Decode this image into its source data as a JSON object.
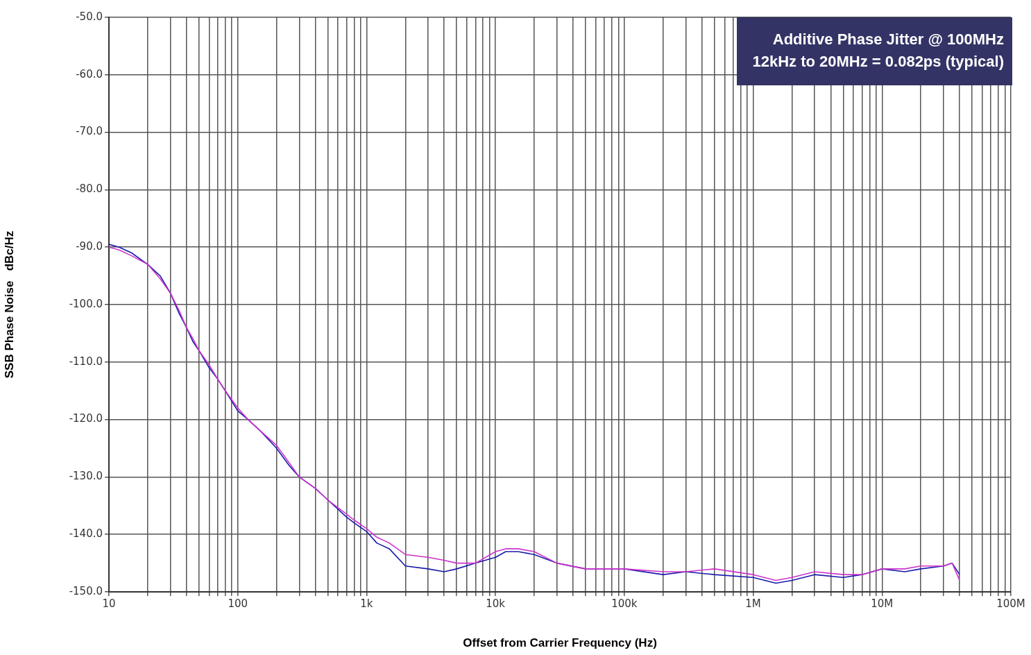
{
  "chart_data": {
    "type": "line",
    "xlabel": "Offset from Carrier Frequency (Hz)",
    "ylabel": "SSB Phase Noise   dBc/Hz",
    "log": "x",
    "grid": true,
    "marker": "none",
    "line_style": "solid",
    "annotations": [
      "Additive Phase Jitter @ 100MHz\n12kHz to 20MHz = 0.082ps (typical)"
    ],
    "x": [
      10,
      12,
      15,
      20,
      25,
      30,
      35,
      40,
      45,
      50,
      60,
      70,
      80,
      100,
      120,
      150,
      200,
      250,
      300,
      400,
      500,
      700,
      800,
      1000,
      1200,
      1500,
      2000,
      3000,
      4000,
      5000,
      7000,
      10000,
      12000,
      15000,
      20000,
      30000,
      50000,
      70000,
      100000,
      200000,
      300000,
      500000,
      1000000,
      1500000,
      2000000,
      3000000,
      5000000,
      7000000,
      10000000,
      15000000,
      20000000,
      30000000,
      35000000,
      40000000
    ],
    "series": [
      {
        "color": "#cc33cc",
        "values": [
          -90,
          -90.5,
          -91.5,
          -93,
          -95.5,
          -98,
          -101,
          -104,
          -106,
          -108,
          -110.5,
          -113,
          -115,
          -118,
          -120,
          -122,
          -124.5,
          -127.5,
          -130,
          -132,
          -134,
          -136.5,
          -137.5,
          -139,
          -140.5,
          -141.5,
          -143.5,
          -144,
          -144.5,
          -145,
          -145,
          -143,
          -142.5,
          -142.5,
          -143,
          -145,
          -146,
          -146,
          -146,
          -146.5,
          -146.5,
          -146,
          -147,
          -148,
          -147.5,
          -146.5,
          -147,
          -147,
          -146,
          -146,
          -145.5,
          -145.5,
          -145,
          -148
        ]
      },
      {
        "color": "#1a1aaa",
        "values": [
          -89.5,
          -90,
          -91,
          -93,
          -95,
          -98,
          -101.5,
          -104,
          -106.5,
          -108,
          -111,
          -113,
          -115,
          -118.5,
          -120,
          -122,
          -125,
          -128,
          -130,
          -132,
          -134,
          -137,
          -138,
          -139.5,
          -141.5,
          -142.5,
          -145.5,
          -146,
          -146.5,
          -146,
          -145,
          -144,
          -143,
          -143,
          -143.5,
          -145,
          -146,
          -146,
          -146,
          -147,
          -146.5,
          -147,
          -147.5,
          -148.5,
          -148,
          -147,
          -147.5,
          -147,
          -146,
          -146.5,
          -146,
          -145.5,
          -145,
          -147
        ]
      }
    ],
    "xlim": [
      10,
      100000000
    ],
    "xticks": [
      {
        "value": 10,
        "label": "10"
      },
      {
        "value": 20,
        "label": null
      },
      {
        "value": 30,
        "label": null
      },
      {
        "value": 40,
        "label": null
      },
      {
        "value": 50,
        "label": null
      },
      {
        "value": 60,
        "label": null
      },
      {
        "value": 70,
        "label": null
      },
      {
        "value": 80,
        "label": null
      },
      {
        "value": 90,
        "label": null
      },
      {
        "value": 100,
        "label": "100"
      },
      {
        "value": 200,
        "label": null
      },
      {
        "value": 300,
        "label": null
      },
      {
        "value": 400,
        "label": null
      },
      {
        "value": 500,
        "label": null
      },
      {
        "value": 600,
        "label": null
      },
      {
        "value": 700,
        "label": null
      },
      {
        "value": 800,
        "label": null
      },
      {
        "value": 900,
        "label": null
      },
      {
        "value": 1000,
        "label": "1k"
      },
      {
        "value": 2000,
        "label": null
      },
      {
        "value": 3000,
        "label": null
      },
      {
        "value": 4000,
        "label": null
      },
      {
        "value": 5000,
        "label": null
      },
      {
        "value": 6000,
        "label": null
      },
      {
        "value": 7000,
        "label": null
      },
      {
        "value": 8000,
        "label": null
      },
      {
        "value": 9000,
        "label": null
      },
      {
        "value": 10000,
        "label": "10k"
      },
      {
        "value": 20000,
        "label": null
      },
      {
        "value": 30000,
        "label": null
      },
      {
        "value": 40000,
        "label": null
      },
      {
        "value": 50000,
        "label": null
      },
      {
        "value": 60000,
        "label": null
      },
      {
        "value": 70000,
        "label": null
      },
      {
        "value": 80000,
        "label": null
      },
      {
        "value": 90000,
        "label": null
      },
      {
        "value": 100000,
        "label": "100k"
      },
      {
        "value": 200000,
        "label": null
      },
      {
        "value": 300000,
        "label": null
      },
      {
        "value": 400000,
        "label": null
      },
      {
        "value": 500000,
        "label": null
      },
      {
        "value": 600000,
        "label": null
      },
      {
        "value": 700000,
        "label": null
      },
      {
        "value": 800000,
        "label": null
      },
      {
        "value": 900000,
        "label": null
      },
      {
        "value": 1000000,
        "label": "1M"
      },
      {
        "value": 2000000,
        "label": null
      },
      {
        "value": 3000000,
        "label": null
      },
      {
        "value": 4000000,
        "label": null
      },
      {
        "value": 5000000,
        "label": null
      },
      {
        "value": 6000000,
        "label": null
      },
      {
        "value": 7000000,
        "label": null
      },
      {
        "value": 8000000,
        "label": null
      },
      {
        "value": 9000000,
        "label": null
      },
      {
        "value": 10000000,
        "label": "10M"
      },
      {
        "value": 20000000,
        "label": null
      },
      {
        "value": 30000000,
        "label": null
      },
      {
        "value": 40000000,
        "label": null
      },
      {
        "value": 50000000,
        "label": null
      },
      {
        "value": 60000000,
        "label": null
      },
      {
        "value": 70000000,
        "label": null
      },
      {
        "value": 80000000,
        "label": null
      },
      {
        "value": 90000000,
        "label": null
      },
      {
        "value": 100000000,
        "label": "100M"
      }
    ],
    "ylim": [
      -150,
      -50
    ],
    "yticks": [
      {
        "value": -150,
        "label": "-150.0"
      },
      {
        "value": -140,
        "label": "-140.0"
      },
      {
        "value": -130,
        "label": "-130.0"
      },
      {
        "value": -120,
        "label": "-120.0"
      },
      {
        "value": -110,
        "label": "-110.0"
      },
      {
        "value": -100,
        "label": "-100.0"
      },
      {
        "value": -90,
        "label": "-90.0"
      },
      {
        "value": -80,
        "label": "-80.0"
      },
      {
        "value": -70,
        "label": "-70.0"
      },
      {
        "value": -60,
        "label": "-60.0"
      },
      {
        "value": -50,
        "label": "-50.0"
      }
    ]
  }
}
